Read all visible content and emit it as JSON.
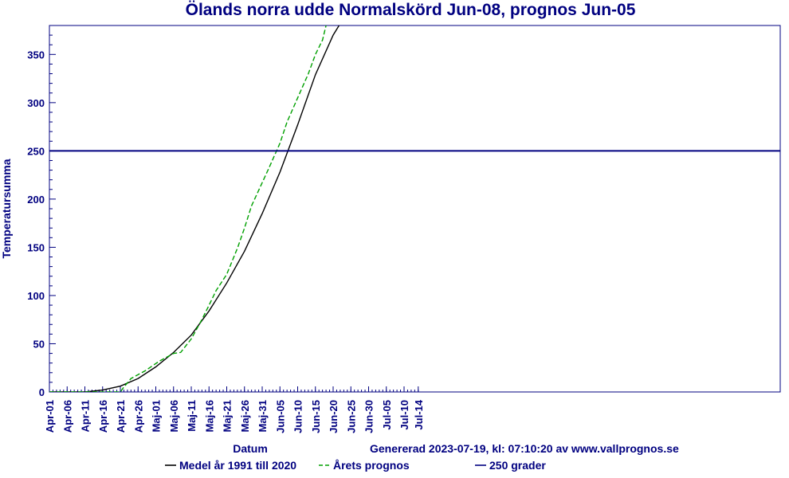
{
  "chart_data": {
    "type": "line",
    "title": "Ölands norra udde Normalskörd Jun-08, prognos Jun-05",
    "xlabel": "Datum",
    "ylabel": "Temperatursumma",
    "generated": "Genererad 2023-07-19, kl: 07:10:20 av www.vallprognos.se",
    "ylim": [
      0,
      380
    ],
    "yticks": [
      0,
      50,
      100,
      150,
      200,
      250,
      300,
      350
    ],
    "x_tick_labels": [
      "Apr-01",
      "Apr-06",
      "Apr-11",
      "Apr-16",
      "Apr-21",
      "Apr-26",
      "Maj-01",
      "Maj-06",
      "Maj-11",
      "Maj-16",
      "Maj-21",
      "Maj-26",
      "Maj-31",
      "Jun-05",
      "Jun-10",
      "Jun-15",
      "Jun-20",
      "Jun-25",
      "Jun-30",
      "Jul-05",
      "Jul-10",
      "Jul-14"
    ],
    "grid": false,
    "legend_placement": "bottom",
    "colors": {
      "frame": "#000080",
      "text": "#000080",
      "average": "#000000",
      "forecast": "#00a000",
      "threshold": "#000080"
    },
    "series": [
      {
        "name": "Medel år 1991 till 2020",
        "style": "solid",
        "x": [
          "Apr-01",
          "Apr-06",
          "Apr-11",
          "Apr-16",
          "Apr-21",
          "Apr-26",
          "Maj-01",
          "Maj-06",
          "Maj-11",
          "Maj-16",
          "Maj-21",
          "Maj-26",
          "Maj-31",
          "Jun-05",
          "Jun-10",
          "Jun-15",
          "Jun-20",
          "Jun-22"
        ],
        "values": [
          0,
          0,
          0,
          2,
          6,
          14,
          26,
          41,
          59,
          84,
          113,
          146,
          185,
          228,
          277,
          329,
          370,
          382
        ]
      },
      {
        "name": "Årets prognos",
        "style": "dashed",
        "x": [
          "Apr-01",
          "Apr-21",
          "Apr-22",
          "Apr-24",
          "Apr-26",
          "Apr-28",
          "Apr-30",
          "May-02",
          "Maj-06",
          "Maj-08",
          "Maj-11",
          "Maj-14",
          "Maj-16",
          "Maj-18",
          "Maj-21",
          "Maj-24",
          "Maj-26",
          "Maj-28",
          "Maj-31",
          "Jun-02",
          "Jun-05",
          "Jun-07",
          "Jun-10",
          "Jun-13",
          "Jun-15",
          "Jun-17",
          "Jun-18"
        ],
        "values": [
          0,
          0,
          5,
          14,
          18,
          22,
          27,
          32,
          40,
          41,
          55,
          75,
          90,
          105,
          122,
          149,
          170,
          193,
          217,
          233,
          258,
          280,
          305,
          330,
          350,
          365,
          380
        ]
      },
      {
        "name": "250 grader",
        "style": "solid",
        "x": [
          "Apr-01",
          "Jul-14"
        ],
        "values": [
          250,
          250
        ]
      }
    ]
  }
}
